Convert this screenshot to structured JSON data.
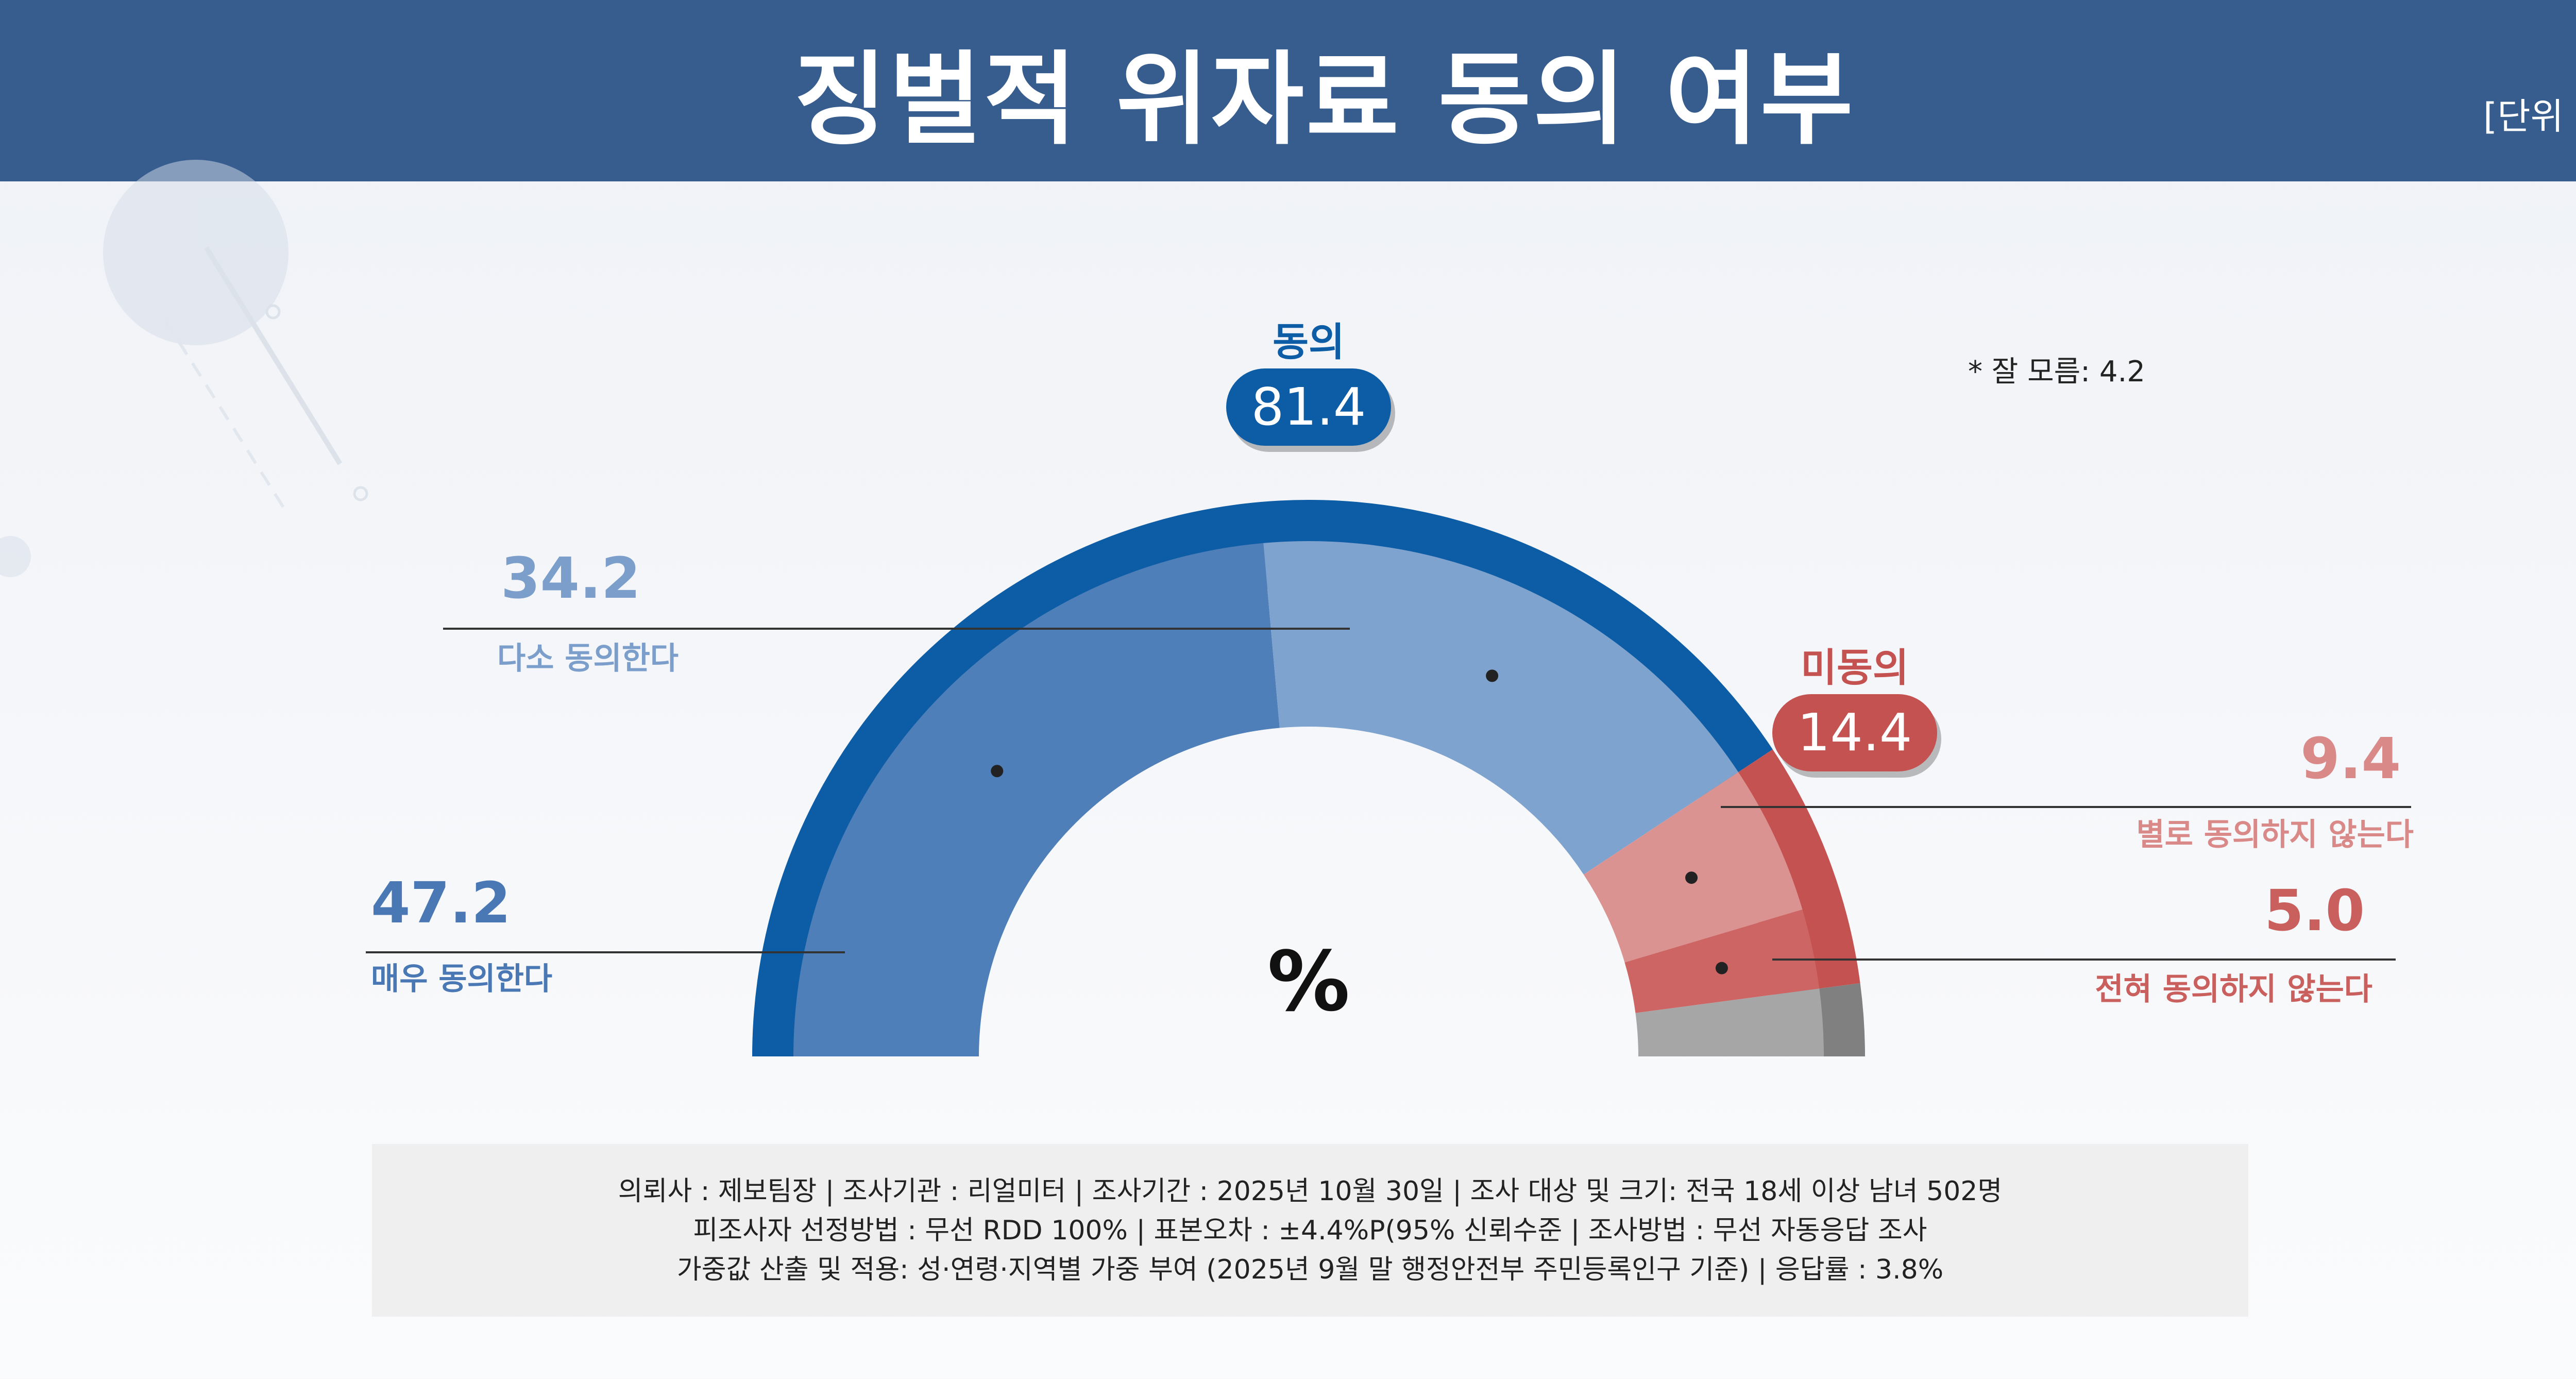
{
  "header": {
    "title": "징벌적 위자료 동의 여부",
    "unit": "[단위 %]"
  },
  "note": "* 잘 모름: 4.2",
  "center_symbol": "%",
  "chart_data": {
    "type": "pie",
    "title": "징벌적 위자료 동의 여부",
    "unit": "%",
    "inner": [
      {
        "name": "매우 동의한다",
        "value": 47.2,
        "label": "47.2",
        "color": "#4f7fb9"
      },
      {
        "name": "다소 동의한다",
        "value": 34.2,
        "label": "34.2",
        "color": "#7ea3ce"
      },
      {
        "name": "별로 동의하지 않는다",
        "value": 9.4,
        "label": "9.4",
        "color": "#db9391"
      },
      {
        "name": "전혀 동의하지 않는다",
        "value": 5.0,
        "label": "5.0",
        "color": "#cc6563"
      },
      {
        "name": "잘 모름",
        "value": 4.2,
        "color": "#a6a6a6"
      }
    ],
    "outer": [
      {
        "name": "동의",
        "value": 81.4,
        "label": "81.4",
        "color": "#0d5ca6"
      },
      {
        "name": "미동의",
        "value": 14.4,
        "label": "14.4",
        "color": "#c35250"
      },
      {
        "name": "잘 모름",
        "value": 4.2,
        "color": "#808080"
      }
    ]
  },
  "footer": {
    "line1": "의뢰사 : 제보팀장  | 조사기관 : 리얼미터  |  조사기간 : 2025년 10월 30일 | 조사 대상 및 크기: 전국 18세 이상 남녀 502명",
    "line2": "피조사자 선정방법 : 무선 RDD 100% | 표본오차 : ±4.4%P(95% 신뢰수준 | 조사방법 : 무선 자동응답 조사",
    "line3": "가중값 산출 및 적용: 성·연령·지역별 가중 부여 (2025년 9월 말 행정안전부 주민등록인구 기준) | 응답률 : 3.8%"
  }
}
